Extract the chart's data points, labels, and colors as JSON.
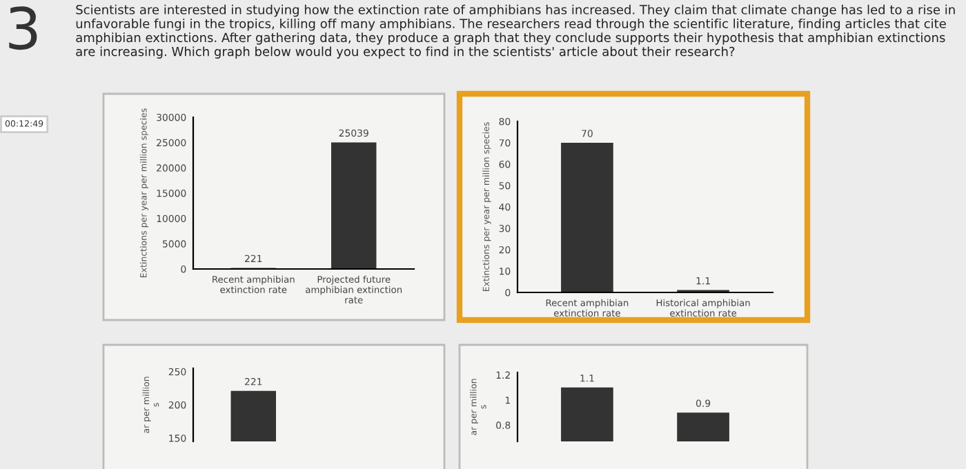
{
  "chart_data": [
    {
      "type": "bar",
      "categories": [
        "Recent amphibian extinction rate",
        "Projected future amphibian extinction rate"
      ],
      "values": [
        221,
        25039
      ],
      "color": "#333333",
      "ylabel": "Extinctions per year per million species",
      "ylim": [
        0,
        30000
      ],
      "yticks": [
        0,
        5000,
        10000,
        15000,
        20000,
        25000,
        30000
      ],
      "value_labels": [
        "221",
        "25039"
      ],
      "annotations": [
        "3",
        "00:12:49",
        "Scientists are interested in studying how the extinction rate of amphibians has increased. They claim that climate change has led to a rise in unfavorable fungi in the tropics, killing off many amphibians. The researchers read through the scientific literature, finding articles that cite amphibian extinctions. After gathering data, they produce a graph that they conclude supports their hypothesis that amphibian extinctions are increasing. Which graph below would you expect to find in the scientists' article about their research?"
      ]
    },
    {
      "type": "bar",
      "categories": [
        "Recent amphibian extinction rate",
        "Historical amphibian extinction rate"
      ],
      "values": [
        70,
        1.1
      ],
      "color": "#333333",
      "ylabel": "Extinctions per year per million species",
      "ylim": [
        0,
        80
      ],
      "yticks": [
        0,
        10,
        20,
        30,
        40,
        50,
        60,
        70,
        80
      ],
      "value_labels": [
        "70",
        "1.1"
      ]
    },
    {
      "type": "bar",
      "categories": [
        null,
        null
      ],
      "values": [
        221,
        null
      ],
      "color": "#333333",
      "ylabel": "ar per million\ns",
      "ylim": [
        145,
        255
      ],
      "yticks": [
        150,
        200,
        250
      ],
      "value_labels": [
        "221",
        null
      ]
    },
    {
      "type": "bar",
      "categories": [
        null,
        null
      ],
      "values": [
        1.1,
        0.9
      ],
      "color": "#333333",
      "ylabel": "ar per million\ns",
      "ylim": [
        0.67,
        1.22
      ],
      "yticks": [
        0.8,
        {
          "value": 1,
          "label": "1"
        },
        1.2
      ],
      "value_labels": [
        "1.1",
        "0.9"
      ]
    }
  ]
}
